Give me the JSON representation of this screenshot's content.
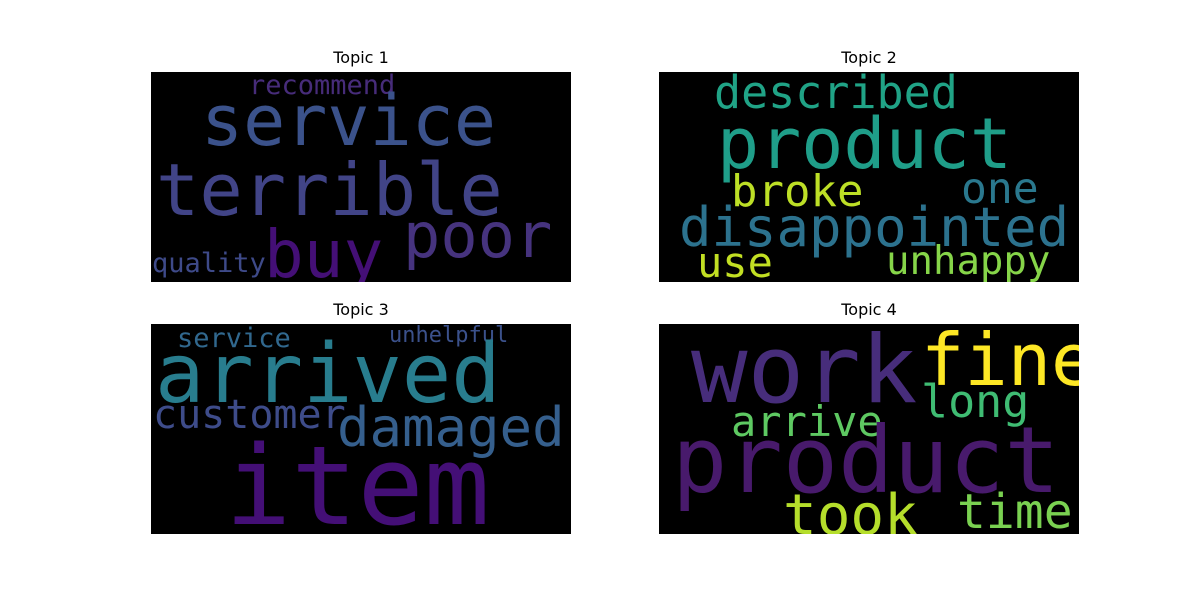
{
  "panels": [
    {
      "title": "Topic 1",
      "words": [
        {
          "text": "recommend",
          "color": "#472c7a"
        },
        {
          "text": "service",
          "color": "#3b528b"
        },
        {
          "text": "terrible",
          "color": "#414487"
        },
        {
          "text": "poor",
          "color": "#46337e"
        },
        {
          "text": "buy",
          "color": "#440f76"
        },
        {
          "text": "quality",
          "color": "#3e4a89"
        }
      ]
    },
    {
      "title": "Topic 2",
      "words": [
        {
          "text": "described",
          "color": "#20a386"
        },
        {
          "text": "product",
          "color": "#1f9e89"
        },
        {
          "text": "broke",
          "color": "#bddf26"
        },
        {
          "text": "one",
          "color": "#2a788e"
        },
        {
          "text": "disappointed",
          "color": "#2c728e"
        },
        {
          "text": "use",
          "color": "#c2df23"
        },
        {
          "text": "unhappy",
          "color": "#86d549"
        }
      ]
    },
    {
      "title": "Topic 3",
      "words": [
        {
          "text": "service",
          "color": "#31688e"
        },
        {
          "text": "unhelpful",
          "color": "#3b518b"
        },
        {
          "text": "arrived",
          "color": "#287d8e"
        },
        {
          "text": "customer",
          "color": "#3e4c8a"
        },
        {
          "text": "damaged",
          "color": "#355f8d"
        },
        {
          "text": "item",
          "color": "#440f76"
        }
      ]
    },
    {
      "title": "Topic 4",
      "words": [
        {
          "text": "work",
          "color": "#472d7b"
        },
        {
          "text": "fine",
          "color": "#fde725"
        },
        {
          "text": "long",
          "color": "#3fbc73"
        },
        {
          "text": "arrive",
          "color": "#5ec962"
        },
        {
          "text": "product",
          "color": "#481a6c"
        },
        {
          "text": "took",
          "color": "#b5de2b"
        },
        {
          "text": "time",
          "color": "#7ad151"
        }
      ]
    }
  ]
}
